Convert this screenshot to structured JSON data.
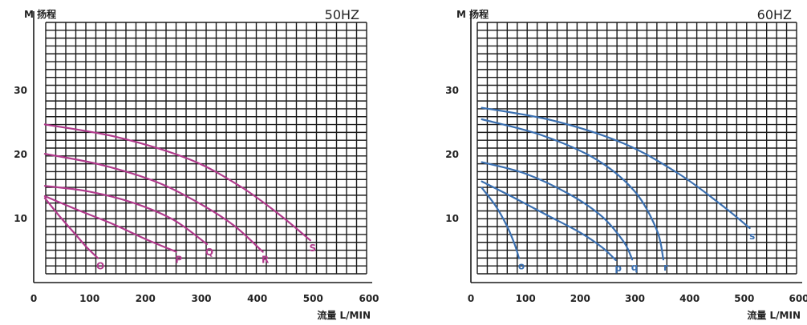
{
  "chart_data": [
    {
      "type": "line",
      "title": "50HZ",
      "xlabel": "流量 L/MIN",
      "ylabel": "M 扬程",
      "xlim": [
        0,
        600
      ],
      "ylim": [
        0,
        35
      ],
      "xticks": [
        "0",
        "100",
        "200",
        "300",
        "400",
        "500",
        "600"
      ],
      "yticks": [
        "10",
        "20",
        "30"
      ],
      "grid": true,
      "color": "#b03a8c",
      "series": [
        {
          "name": "O",
          "points": [
            [
              20,
              13.2
            ],
            [
              45,
              10.5
            ],
            [
              75,
              7.5
            ],
            [
              95,
              5.5
            ],
            [
              115,
              3.8
            ]
          ]
        },
        {
          "name": "P",
          "points": [
            [
              20,
              13.5
            ],
            [
              80,
              11.3
            ],
            [
              140,
              9.2
            ],
            [
              200,
              6.8
            ],
            [
              255,
              4.8
            ]
          ]
        },
        {
          "name": "Q",
          "points": [
            [
              20,
              15.1
            ],
            [
              100,
              14.2
            ],
            [
              180,
              12.4
            ],
            [
              250,
              9.8
            ],
            [
              310,
              6.0
            ]
          ]
        },
        {
          "name": "R",
          "points": [
            [
              20,
              20.1
            ],
            [
              120,
              18.4
            ],
            [
              220,
              15.7
            ],
            [
              300,
              12.2
            ],
            [
              360,
              8.8
            ],
            [
              410,
              4.8
            ]
          ]
        },
        {
          "name": "S",
          "points": [
            [
              20,
              24.7
            ],
            [
              150,
              22.7
            ],
            [
              280,
              19.2
            ],
            [
              370,
              15.0
            ],
            [
              440,
              10.6
            ],
            [
              495,
              6.6
            ]
          ]
        }
      ]
    },
    {
      "type": "line",
      "title": "60HZ",
      "xlabel": "流量 L/MIN",
      "ylabel": "M 扬程",
      "xlim": [
        0,
        600
      ],
      "ylim": [
        0,
        35
      ],
      "xticks": [
        "0",
        "100",
        "200",
        "300",
        "400",
        "500",
        "600"
      ],
      "yticks": [
        "10",
        "20",
        "30"
      ],
      "grid": true,
      "color": "#3a6fb0",
      "series": [
        {
          "name": "O",
          "points": [
            [
              20,
              14.8
            ],
            [
              45,
              12.0
            ],
            [
              65,
              9.0
            ],
            [
              80,
              6.0
            ],
            [
              88,
              3.8
            ]
          ]
        },
        {
          "name": "P",
          "points": [
            [
              20,
              15.8
            ],
            [
              80,
              13.2
            ],
            [
              140,
              10.5
            ],
            [
              200,
              7.8
            ],
            [
              240,
              5.5
            ],
            [
              265,
              3.5
            ]
          ]
        },
        {
          "name": "Q",
          "points": [
            [
              20,
              18.8
            ],
            [
              100,
              17.0
            ],
            [
              180,
              13.8
            ],
            [
              240,
              10.3
            ],
            [
              280,
              6.3
            ],
            [
              295,
              3.6
            ]
          ]
        },
        {
          "name": "R",
          "points": [
            [
              20,
              25.5
            ],
            [
              130,
              23.0
            ],
            [
              230,
              19.2
            ],
            [
              300,
              14.2
            ],
            [
              340,
              8.2
            ],
            [
              352,
              3.6
            ]
          ]
        },
        {
          "name": "S",
          "points": [
            [
              20,
              27.3
            ],
            [
              150,
              25.3
            ],
            [
              280,
              21.7
            ],
            [
              380,
              17.0
            ],
            [
              460,
              12.0
            ],
            [
              510,
              8.5
            ]
          ]
        }
      ],
      "curve_labels": [
        "o",
        "p",
        "q",
        "r",
        "s"
      ]
    }
  ]
}
